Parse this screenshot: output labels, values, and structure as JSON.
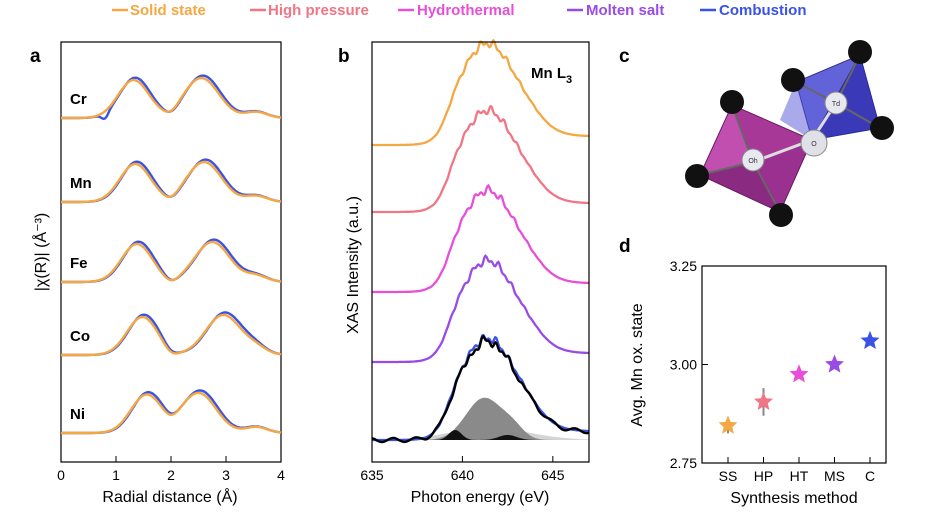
{
  "legend": [
    {
      "label": "Solid state",
      "color": "#f5a742"
    },
    {
      "label": "High pressure",
      "color": "#f07585"
    },
    {
      "label": "Hydrothermal",
      "color": "#e84fd8"
    },
    {
      "label": "Molten salt",
      "color": "#9a4be6"
    },
    {
      "label": "Combustion",
      "color": "#3a52e6"
    }
  ],
  "panels": {
    "a": "a",
    "b": "b",
    "c": "c",
    "d": "d"
  },
  "chart_data": [
    {
      "panel": "a",
      "type": "line",
      "title": "",
      "xlabel": "Radial distance (Å)",
      "ylabel": "|χ(R)| (Å⁻³)",
      "xlim": [
        0,
        4
      ],
      "xticks": [
        "0",
        "1",
        "2",
        "3",
        "4"
      ],
      "series_labels": [
        "Cr",
        "Mn",
        "Fe",
        "Co",
        "Ni"
      ],
      "series": [
        {
          "name": "Solid state",
          "color": "#f5a742"
        },
        {
          "name": "Combustion",
          "color": "#3a52e6"
        }
      ]
    },
    {
      "panel": "b",
      "type": "line",
      "title": "Mn L3",
      "title_main": "Mn L",
      "title_sub": "3",
      "xlabel": "Photon energy (eV)",
      "ylabel": "XAS Intensity (a.u.)",
      "xlim": [
        635,
        647
      ],
      "xticks": [
        "635",
        "640",
        "645"
      ],
      "series": [
        {
          "name": "Solid state",
          "color": "#f5a742"
        },
        {
          "name": "High pressure",
          "color": "#f07585"
        },
        {
          "name": "Hydrothermal",
          "color": "#e84fd8"
        },
        {
          "name": "Molten salt",
          "color": "#9a4be6"
        },
        {
          "name": "Combustion",
          "color": "#3a52e6"
        }
      ],
      "fit_components": [
        "dark gray",
        "light gray",
        "black"
      ]
    },
    {
      "panel": "d",
      "type": "scatter",
      "xlabel": "Synthesis method",
      "ylabel": "Avg. Mn ox. state",
      "categories": [
        "SS",
        "HP",
        "HT",
        "MS",
        "C"
      ],
      "values": [
        2.845,
        2.905,
        2.975,
        3.0,
        3.06
      ],
      "errors": [
        0.02,
        0.035,
        0.01,
        0.008,
        0.006
      ],
      "colors": [
        "#f5a742",
        "#f07585",
        "#e84fd8",
        "#9a4be6",
        "#3a52e6"
      ],
      "ylim": [
        2.75,
        3.25
      ],
      "yticks": [
        "2.75",
        "3.00",
        "3.25"
      ]
    }
  ],
  "structure": {
    "oh_label": "Oh",
    "td_label": "Td",
    "o_label": "O"
  }
}
